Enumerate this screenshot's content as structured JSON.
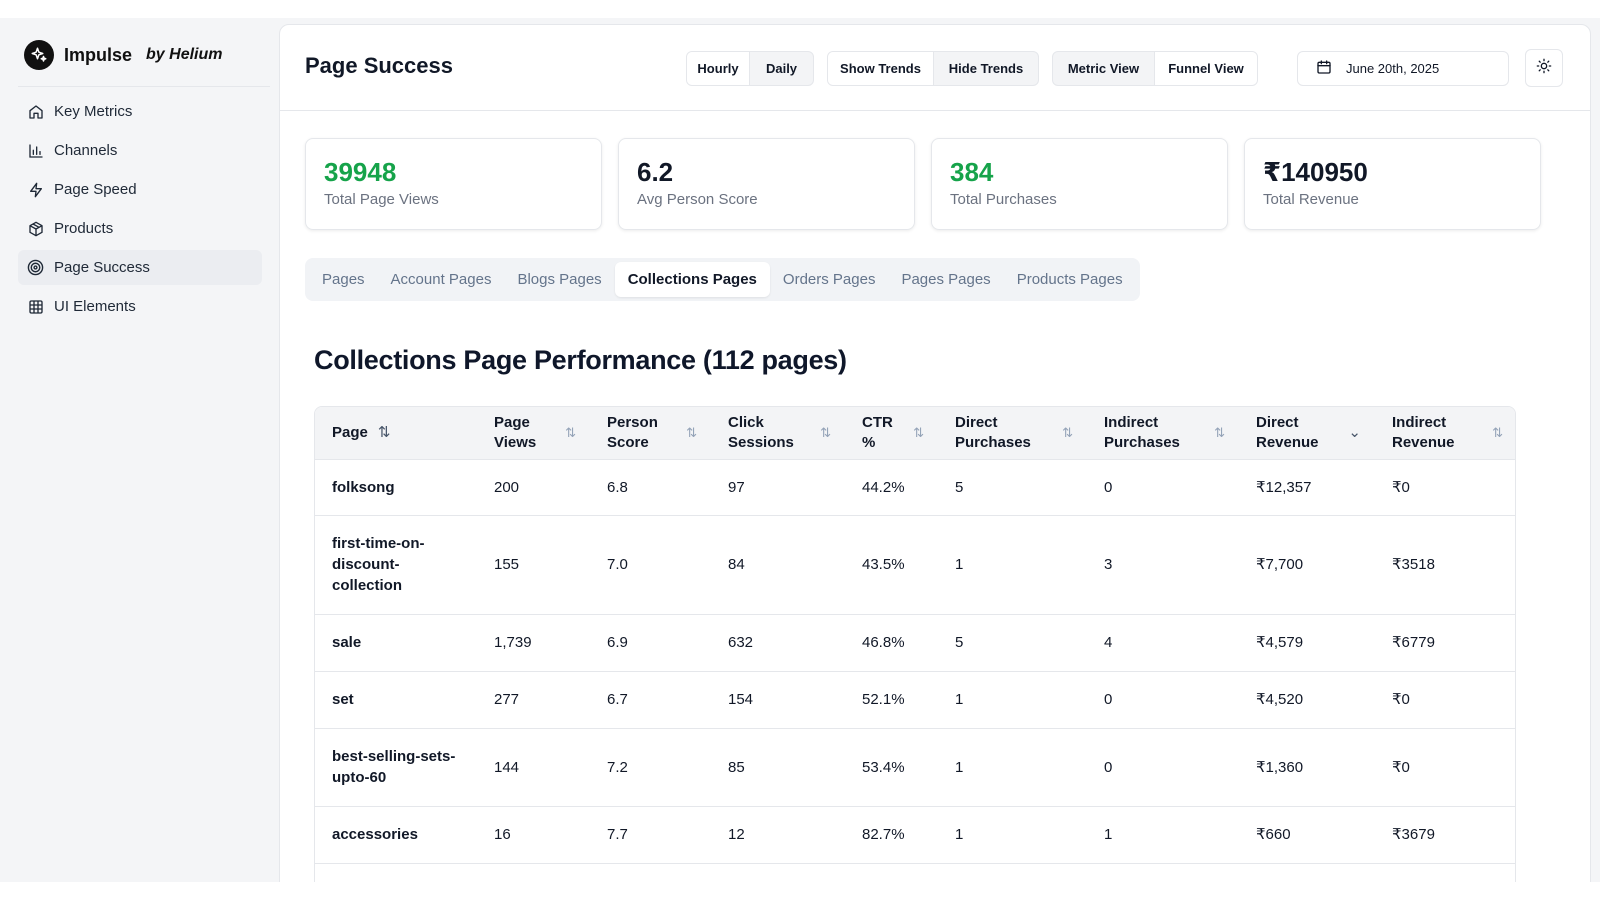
{
  "brand": {
    "name": "Impulse",
    "by": "by Helium"
  },
  "sidebar": {
    "items": [
      {
        "label": "Key Metrics",
        "icon": "home-icon"
      },
      {
        "label": "Channels",
        "icon": "bar-chart-icon"
      },
      {
        "label": "Page Speed",
        "icon": "lightning-icon"
      },
      {
        "label": "Products",
        "icon": "package-icon"
      },
      {
        "label": "Page Success",
        "icon": "target-icon",
        "active": true
      },
      {
        "label": "UI Elements",
        "icon": "grid-icon"
      }
    ]
  },
  "header": {
    "title": "Page Success",
    "granularity": {
      "options": [
        "Hourly",
        "Daily"
      ],
      "selected": "Hourly"
    },
    "trends": {
      "options": [
        "Show Trends",
        "Hide Trends"
      ],
      "selected": "Show Trends"
    },
    "view": {
      "options": [
        "Metric View",
        "Funnel View"
      ],
      "selected": "Funnel View"
    },
    "date": "June 20th, 2025",
    "theme_icon": "sun-icon"
  },
  "stats": [
    {
      "value": "39948",
      "label": "Total Page Views",
      "color": "#16a34a"
    },
    {
      "value": "6.2",
      "label": "Avg Person Score",
      "color": "#111827"
    },
    {
      "value": "384",
      "label": "Total Purchases",
      "color": "#16a34a"
    },
    {
      "value": "₹140950",
      "label": "Total Revenue",
      "color": "#111827"
    }
  ],
  "tabs": [
    "Pages",
    "Account Pages",
    "Blogs Pages",
    "Collections Pages",
    "Orders Pages",
    "Pages Pages",
    "Products Pages"
  ],
  "active_tab": "Collections Pages",
  "section": {
    "title": "Collections Page Performance (112 pages)"
  },
  "table": {
    "columns": [
      {
        "label": "Page"
      },
      {
        "label": "Page Views"
      },
      {
        "label": "Person Score"
      },
      {
        "label": "Click Sessions"
      },
      {
        "label": "CTR %"
      },
      {
        "label": "Direct Purchases"
      },
      {
        "label": "Indirect Purchases"
      },
      {
        "label": "Direct Revenue",
        "sorted": "desc"
      },
      {
        "label": "Indirect Revenue"
      }
    ],
    "rows": [
      {
        "page": "folksong",
        "views": "200",
        "score": "6.8",
        "clicks": "97",
        "ctr": "44.2%",
        "direct_purchases": "5",
        "indirect_purchases": "0",
        "direct_revenue": "₹12,357",
        "indirect_revenue": "₹0"
      },
      {
        "page": "first-time-on-discount-collection",
        "views": "155",
        "score": "7.0",
        "clicks": "84",
        "ctr": "43.5%",
        "direct_purchases": "1",
        "indirect_purchases": "3",
        "direct_revenue": "₹7,700",
        "indirect_revenue": "₹3518"
      },
      {
        "page": "sale",
        "views": "1,739",
        "score": "6.9",
        "clicks": "632",
        "ctr": "46.8%",
        "direct_purchases": "5",
        "indirect_purchases": "4",
        "direct_revenue": "₹4,579",
        "indirect_revenue": "₹6779"
      },
      {
        "page": "set",
        "views": "277",
        "score": "6.7",
        "clicks": "154",
        "ctr": "52.1%",
        "direct_purchases": "1",
        "indirect_purchases": "0",
        "direct_revenue": "₹4,520",
        "indirect_revenue": "₹0"
      },
      {
        "page": "best-selling-sets-upto-60",
        "views": "144",
        "score": "7.2",
        "clicks": "85",
        "ctr": "53.4%",
        "direct_purchases": "1",
        "indirect_purchases": "0",
        "direct_revenue": "₹1,360",
        "indirect_revenue": "₹0"
      },
      {
        "page": "accessories",
        "views": "16",
        "score": "7.7",
        "clicks": "12",
        "ctr": "82.7%",
        "direct_purchases": "1",
        "indirect_purchases": "1",
        "direct_revenue": "₹660",
        "indirect_revenue": "₹3679"
      }
    ]
  }
}
